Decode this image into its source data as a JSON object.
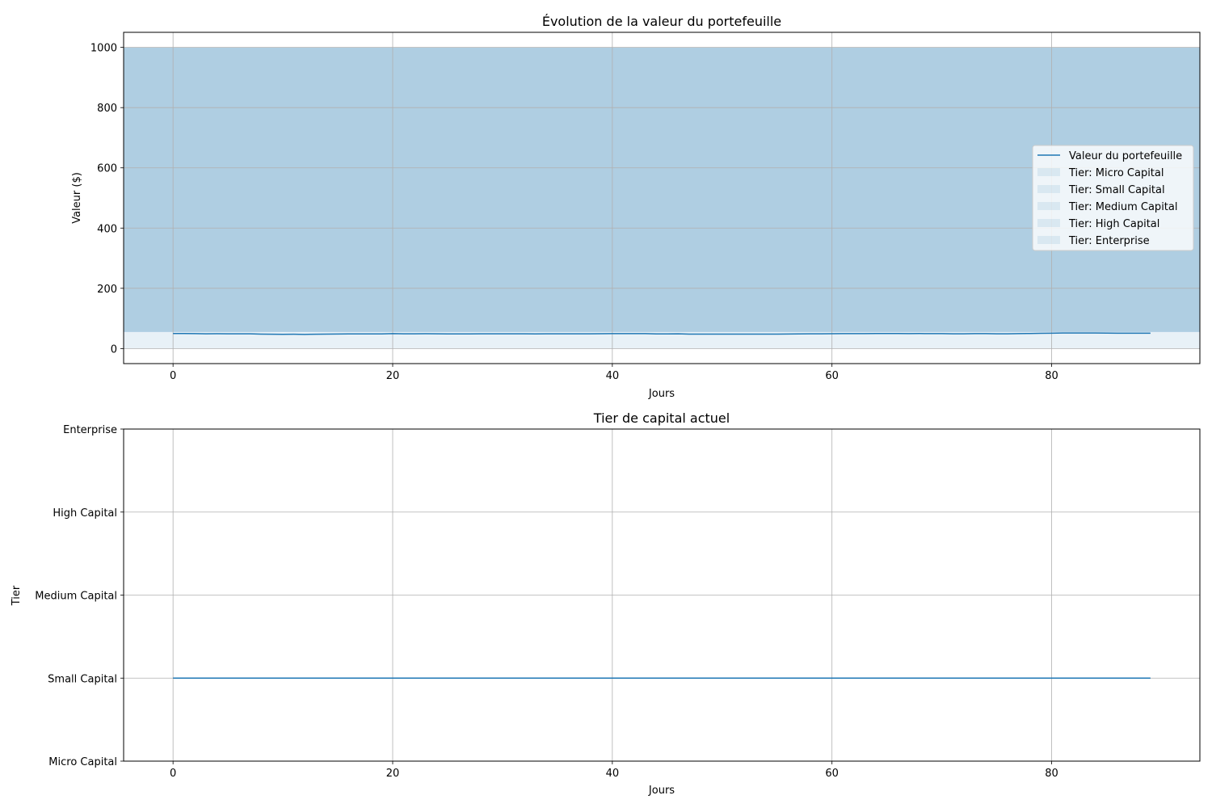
{
  "figure": {
    "charts": [
      {
        "title": "Évolution de la valeur du portefeuille",
        "xlabel": "Jours",
        "ylabel": "Valeur ($)",
        "xticks": [
          "0",
          "20",
          "40",
          "60",
          "80"
        ],
        "yticks": [
          "0",
          "200",
          "400",
          "600",
          "800",
          "1000"
        ],
        "legend": [
          "Valeur du portefeuille",
          "Tier: Micro Capital",
          "Tier: Small Capital",
          "Tier: Medium Capital",
          "Tier: High Capital",
          "Tier: Enterprise"
        ]
      },
      {
        "title": "Tier de capital actuel",
        "xlabel": "Jours",
        "ylabel": "Tier",
        "xticks": [
          "0",
          "20",
          "40",
          "60",
          "80"
        ],
        "yticks": [
          "Micro Capital",
          "Small Capital",
          "Medium Capital",
          "High Capital",
          "Enterprise"
        ]
      }
    ]
  },
  "chart_data": [
    {
      "type": "line",
      "title": "Évolution de la valeur du portefeuille",
      "xlabel": "Jours",
      "ylabel": "Valeur ($)",
      "xlim": [
        -4.5,
        93.5
      ],
      "ylim": [
        -50,
        1050
      ],
      "grid": true,
      "legend_position": "center-right",
      "colors": {
        "line": "#1f77b4",
        "band": "#1f77b4"
      },
      "series": [
        {
          "name": "Valeur du portefeuille",
          "x_start": 0,
          "x_step": 1,
          "values": [
            50,
            50,
            49.5,
            49,
            49.2,
            49,
            49,
            48.8,
            48,
            47.5,
            47.2,
            47.5,
            47,
            47.5,
            47.8,
            48.3,
            48.5,
            48.5,
            48.7,
            48.7,
            49.5,
            49,
            48.8,
            49.2,
            49,
            48.5,
            48.5,
            48.7,
            48.9,
            49,
            49,
            49,
            48.9,
            48.7,
            48.8,
            48.9,
            49,
            49,
            49,
            49.2,
            49.6,
            49.5,
            49.6,
            49.5,
            48.5,
            48.5,
            48.8,
            48,
            48,
            48,
            48,
            48,
            48,
            48,
            48,
            48,
            48.2,
            48.6,
            49,
            49,
            49.3,
            49.5,
            49.6,
            49.7,
            49.8,
            49.8,
            49.8,
            49.7,
            49.8,
            49.7,
            49.6,
            49,
            49,
            49.5,
            49.5,
            49,
            49,
            49.5,
            50,
            50.5,
            51,
            51.5,
            51.5,
            51.5,
            51.5,
            51.2,
            51,
            51,
            51,
            51
          ]
        }
      ],
      "bands": [
        {
          "name": "Tier: Micro Capital",
          "y_from": 0,
          "y_to": 55
        },
        {
          "name": "Tier: Small Capital",
          "y_from": 55,
          "y_to": 1000
        },
        {
          "name": "Tier: Medium Capital",
          "y_from": 55,
          "y_to": 1000
        },
        {
          "name": "Tier: High Capital",
          "y_from": 55,
          "y_to": 1000
        },
        {
          "name": "Tier: Enterprise",
          "y_from": 55,
          "y_to": 1000
        }
      ]
    },
    {
      "type": "line",
      "title": "Tier de capital actuel",
      "xlabel": "Jours",
      "ylabel": "Tier",
      "xlim": [
        -4.5,
        93.5
      ],
      "ylim": [
        0,
        4
      ],
      "categories_y": [
        "Micro Capital",
        "Small Capital",
        "Medium Capital",
        "High Capital",
        "Enterprise"
      ],
      "grid": true,
      "colors": {
        "line": "#1f77b4"
      },
      "series": [
        {
          "x": [
            0,
            89
          ],
          "values": [
            1,
            1
          ]
        }
      ]
    }
  ]
}
